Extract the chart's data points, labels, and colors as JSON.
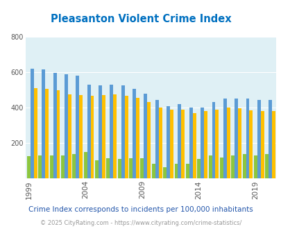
{
  "title": "Pleasanton Violent Crime Index",
  "years": [
    1999,
    2000,
    2001,
    2002,
    2003,
    2004,
    2005,
    2006,
    2007,
    2008,
    2009,
    2010,
    2011,
    2012,
    2013,
    2014,
    2015,
    2016,
    2017,
    2018,
    2019,
    2020
  ],
  "pleasanton": [
    125,
    130,
    130,
    130,
    140,
    150,
    105,
    115,
    110,
    115,
    115,
    85,
    65,
    85,
    85,
    110,
    130,
    120,
    130,
    140,
    130,
    140
  ],
  "california": [
    620,
    615,
    595,
    590,
    580,
    530,
    525,
    530,
    525,
    505,
    480,
    445,
    410,
    420,
    400,
    400,
    430,
    450,
    450,
    450,
    445,
    445
  ],
  "national": [
    510,
    505,
    500,
    475,
    470,
    465,
    470,
    475,
    465,
    455,
    430,
    400,
    390,
    390,
    370,
    380,
    390,
    400,
    395,
    385,
    380,
    380
  ],
  "pleasanton_color": "#8dc63f",
  "california_color": "#5b9bd5",
  "national_color": "#ffc000",
  "bg_color": "#dff0f5",
  "title_color": "#0070c0",
  "legend_text_color": "#333333",
  "footnote_color": "#2255aa",
  "footnote2_color": "#999999",
  "ylim": [
    0,
    800
  ],
  "yticks": [
    0,
    200,
    400,
    600,
    800
  ],
  "xtick_years": [
    1999,
    2004,
    2009,
    2014,
    2019
  ],
  "footnote": "Crime Index corresponds to incidents per 100,000 inhabitants",
  "copyright": "© 2025 CityRating.com - https://www.cityrating.com/crime-statistics/"
}
